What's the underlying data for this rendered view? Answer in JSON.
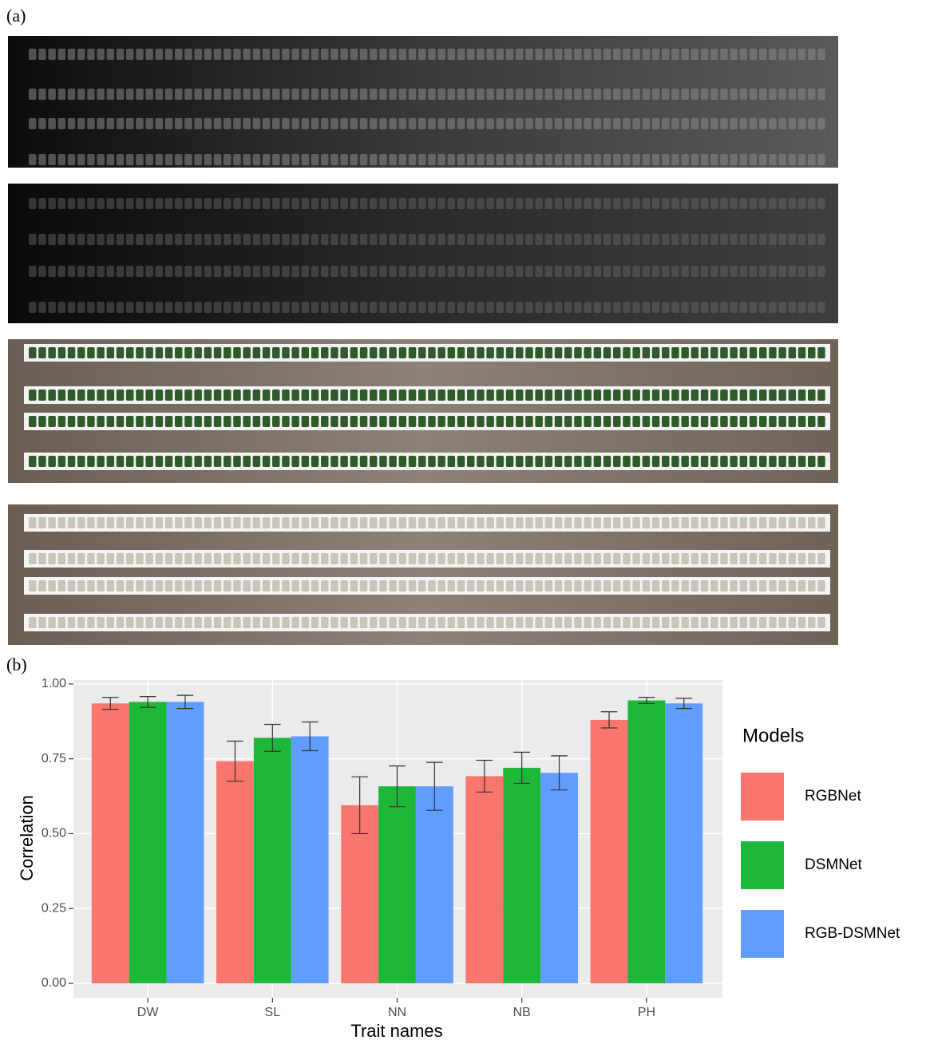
{
  "panel_labels": [
    "(a)",
    "(b)"
  ],
  "chart_data": {
    "type": "bar",
    "x_label": "Trait names",
    "y_label": "Correlation",
    "legend_title": "Models",
    "legend": "right",
    "grid": true,
    "categories": [
      "DW",
      "SL",
      "NN",
      "NB",
      "PH"
    ],
    "series": [
      {
        "name": "RGBNet",
        "color": "#F8766D",
        "values": [
          0.935,
          0.742,
          0.595,
          0.692,
          0.88
        ],
        "errors": [
          0.02,
          0.067,
          0.095,
          0.053,
          0.027
        ]
      },
      {
        "name": "DSMNet",
        "color": "#1DB83A",
        "values": [
          0.94,
          0.82,
          0.658,
          0.72,
          0.945
        ],
        "errors": [
          0.018,
          0.045,
          0.068,
          0.052,
          0.01
        ]
      },
      {
        "name": "RGB-DSMNet",
        "color": "#619CFF",
        "values": [
          0.94,
          0.825,
          0.658,
          0.703,
          0.935
        ],
        "errors": [
          0.022,
          0.048,
          0.08,
          0.057,
          0.017
        ]
      }
    ],
    "ylim": [
      -0.048,
      1.013
    ],
    "yticks": [
      {
        "value": 0,
        "label": "0.00"
      },
      {
        "value": 0.25,
        "label": "0.25"
      },
      {
        "value": 0.5,
        "label": "0.50"
      },
      {
        "value": 0.75,
        "label": "0.75"
      },
      {
        "value": 1,
        "label": "1.00"
      }
    ]
  }
}
